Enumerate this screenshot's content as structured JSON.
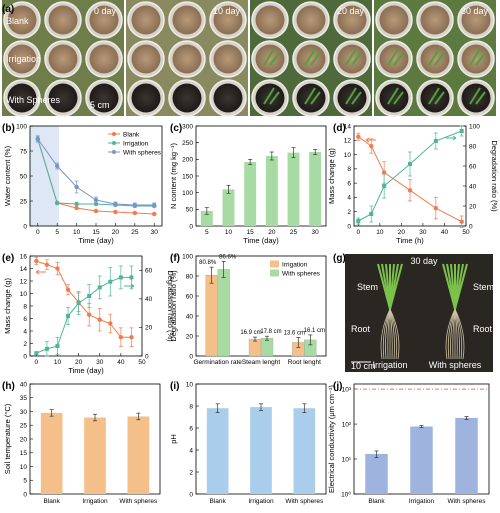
{
  "panels": {
    "a": {
      "label": "(a)",
      "day_labels": [
        "0 day",
        "10 day",
        "20 day",
        "30 day"
      ],
      "row_labels": [
        "Blank",
        "Irrigation",
        "With Spheres"
      ],
      "scale_label": "5 cm"
    },
    "g": {
      "label": "(g)",
      "day_label": "30 day",
      "stem_label": "Stem",
      "root_label": "Root",
      "left_caption": "Irrigation",
      "right_caption": "With spheres",
      "scale_label": "10 cm"
    }
  },
  "colors": {
    "blank": "#f07b4e",
    "irrigation": "#4db59b",
    "spheres": "#7b93c8",
    "bar_blue": "#a9cdea",
    "bar_orange": "#f5bf89",
    "bar_green": "#a8dba4",
    "ec_bar": "#9eb3de",
    "limit_line": "#d94040"
  },
  "chart_data": [
    {
      "panel": "(b)",
      "type": "line",
      "xlabel": "Time (day)",
      "ylabel": "Water content (%)",
      "xlim": [
        -2,
        32
      ],
      "ylim": [
        0,
        100
      ],
      "xticks": [
        0,
        5,
        10,
        15,
        20,
        25,
        30
      ],
      "yticks": [
        0,
        25,
        50,
        75,
        100
      ],
      "series": [
        {
          "name": "Blank",
          "x": [
            0,
            5,
            10,
            15,
            20,
            25,
            30
          ],
          "y": [
            87,
            23,
            18,
            15,
            14,
            13,
            12
          ],
          "err": [
            3,
            1,
            1,
            1,
            1,
            1,
            1
          ]
        },
        {
          "name": "Irrigation",
          "x": [
            0,
            5,
            10,
            15,
            20,
            25,
            30
          ],
          "y": [
            87,
            23,
            22,
            22,
            21,
            20,
            20
          ],
          "err": [
            3,
            1,
            1,
            1,
            1,
            1,
            1
          ]
        },
        {
          "name": "With spheres",
          "x": [
            0,
            5,
            10,
            15,
            20,
            25,
            30
          ],
          "y": [
            87,
            60,
            39,
            26,
            22,
            21,
            21
          ],
          "err": [
            3,
            3,
            6,
            3,
            2,
            2,
            2
          ]
        }
      ],
      "grid": false,
      "legend": "top-right"
    },
    {
      "panel": "(c)",
      "type": "bar",
      "xlabel": "Time (day)",
      "ylabel": "N content (mg kg⁻¹)",
      "categories": [
        "5",
        "10",
        "15",
        "20",
        "25",
        "30"
      ],
      "values": [
        45,
        110,
        192,
        210,
        220,
        222
      ],
      "err": [
        10,
        12,
        8,
        12,
        15,
        8
      ],
      "ylim": [
        0,
        300
      ],
      "yticks": [
        0,
        50,
        100,
        150,
        200,
        250,
        300
      ]
    },
    {
      "panel": "(d)",
      "type": "line",
      "xlabel": "Time (h)",
      "ylabel": "Mass change (g)",
      "ylabel_right": "Degradation ratio (%)",
      "xlim": [
        -2,
        50
      ],
      "ylim": [
        0,
        14
      ],
      "ylim_right": [
        0,
        100
      ],
      "xticks": [
        0,
        10,
        20,
        30,
        40,
        50
      ],
      "yticks": [
        0,
        2,
        4,
        6,
        8,
        10,
        12,
        14
      ],
      "yticks_right": [
        0,
        20,
        40,
        60,
        80,
        100
      ],
      "series": [
        {
          "name": "Mass change",
          "axis": "left",
          "x": [
            0,
            6,
            12,
            24,
            36,
            48
          ],
          "y": [
            12.5,
            11.2,
            7.5,
            5.0,
            2.5,
            0.6
          ],
          "err": [
            0.5,
            1.0,
            1.5,
            1.5,
            1.5,
            0.8
          ]
        },
        {
          "name": "Degradation ratio",
          "axis": "right",
          "x": [
            0,
            6,
            12,
            24,
            36,
            48
          ],
          "y": [
            5,
            12,
            40,
            62,
            85,
            95
          ],
          "err": [
            3,
            8,
            12,
            12,
            8,
            5
          ]
        }
      ]
    },
    {
      "panel": "(e)",
      "type": "line",
      "xlabel": "Time (day)",
      "ylabel": "Mass change (g)",
      "ylabel_right": "Degradation ratio (%)",
      "xlim": [
        -3,
        50
      ],
      "ylim": [
        0,
        16
      ],
      "ylim_right": [
        0,
        70
      ],
      "xticks": [
        0,
        10,
        20,
        30,
        40,
        50
      ],
      "yticks": [
        0,
        2,
        4,
        6,
        8,
        10,
        12,
        14,
        16
      ],
      "yticks_right": [
        0,
        20,
        40,
        60
      ],
      "series": [
        {
          "name": "Mass change",
          "axis": "left",
          "x": [
            0,
            5,
            10,
            15,
            20,
            25,
            30,
            35,
            40,
            45
          ],
          "y": [
            15.2,
            14.6,
            14.0,
            10.6,
            8.6,
            6.6,
            5.8,
            5.2,
            3.0,
            3.0
          ],
          "err": [
            0.6,
            0.8,
            1.0,
            0.8,
            1.5,
            1.8,
            1.8,
            1.5,
            1.5,
            1.5
          ]
        },
        {
          "name": "Degradation ratio",
          "axis": "right",
          "x": [
            0,
            5,
            10,
            15,
            20,
            25,
            30,
            35,
            40,
            45
          ],
          "y": [
            2,
            5,
            7,
            28,
            37,
            42,
            48,
            52,
            55,
            55
          ],
          "err": [
            1,
            5,
            6,
            6,
            8,
            8,
            8,
            10,
            8,
            8
          ]
        }
      ]
    },
    {
      "panel": "(f)",
      "type": "bar",
      "xlabel": "",
      "ylabel": "Degradation ratio (%)",
      "categories": [
        "Germination rate",
        "Steam lenght",
        "Root lenght"
      ],
      "series": [
        {
          "name": "Irrigation",
          "values": [
            80.8,
            16.9,
            13.6
          ],
          "err": [
            8,
            2,
            5
          ]
        },
        {
          "name": "With spheres",
          "values": [
            86.6,
            17.8,
            16.1
          ],
          "err": [
            8,
            2,
            5
          ]
        }
      ],
      "data_labels": [
        [
          "80.8%",
          "86.6%"
        ],
        [
          "16.9 cm",
          "17.8 cm"
        ],
        [
          "13.6 cm",
          "16.1 cm"
        ]
      ],
      "ylim": [
        0,
        100
      ],
      "yticks": [
        0,
        20,
        40,
        60,
        80,
        100
      ],
      "legend": "top-right"
    },
    {
      "panel": "(h)",
      "type": "bar",
      "ylabel": "Soil temperature (°C)",
      "categories": [
        "Blank",
        "Irrigation",
        "With spheres"
      ],
      "values": [
        29.5,
        27.8,
        28.2
      ],
      "err": [
        1.2,
        1.2,
        1.2
      ],
      "ylim": [
        0,
        40
      ],
      "yticks": [
        0,
        5,
        10,
        15,
        20,
        25,
        30,
        35,
        40
      ]
    },
    {
      "panel": "(i)",
      "type": "bar",
      "ylabel": "pH",
      "categories": [
        "Blank",
        "Irrigation",
        "With spheres"
      ],
      "values": [
        7.8,
        7.9,
        7.8
      ],
      "err": [
        0.4,
        0.3,
        0.4
      ],
      "ylim": [
        0,
        10
      ],
      "yticks": [
        0,
        2,
        4,
        6,
        8,
        10
      ]
    },
    {
      "panel": "(j)",
      "type": "bar",
      "ylabel": "Electrical conductivity (μm cm⁻¹)",
      "categories": [
        "Blank",
        "Irrigation",
        "With spheres"
      ],
      "values": [
        14,
        85,
        150
      ],
      "err": [
        3,
        6,
        15
      ],
      "log_scale": true,
      "ylim": [
        1,
        1400
      ],
      "ytick_labels": [
        "10⁰",
        "10¹",
        "10²",
        "10³"
      ],
      "ytick_values": [
        1,
        10,
        100,
        1000
      ],
      "reference_line": 1000
    }
  ],
  "labels": {
    "b": "(b)",
    "c": "(c)",
    "d": "(d)",
    "e": "(e)",
    "f": "(f)",
    "h": "(h)",
    "i": "(i)",
    "j": "(j)"
  }
}
